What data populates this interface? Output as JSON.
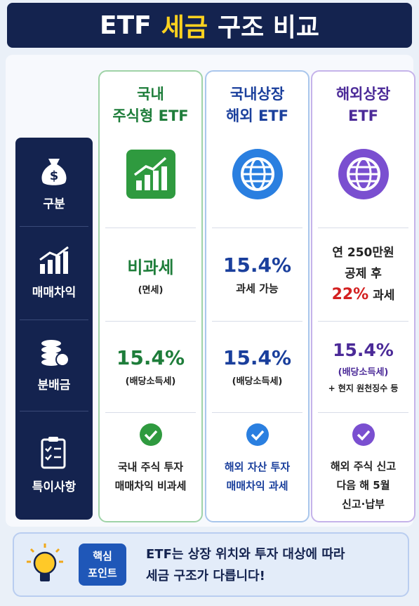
{
  "header": {
    "title": [
      "ETF",
      "세금",
      "구조 비교"
    ]
  },
  "row_labels": [
    "구분",
    "매매차익",
    "분배금",
    "특이사항"
  ],
  "columns": [
    {
      "name": [
        "국내",
        "주식형 ETF"
      ],
      "gain": [
        "비과세",
        "(면세)"
      ],
      "distribution": [
        "15.4%",
        "(배당소득세)"
      ],
      "notes": [
        "국내 주식 투자",
        "매매차익 비과세"
      ]
    },
    {
      "name": [
        "국내상장",
        "해외 ETF"
      ],
      "gain": [
        "15.4%",
        "과세 가능"
      ],
      "distribution": [
        "15.4%",
        "(배당소득세)"
      ],
      "notes": [
        "해외 자산 투자",
        "매매차익 과세"
      ]
    },
    {
      "name": [
        "해외상장",
        "ETF"
      ],
      "gain": [
        "연 250만원",
        "공제 후",
        "22%",
        "과세"
      ],
      "distribution": [
        "15.4%",
        "(배당소득세)",
        "+ 현지 원천징수 등"
      ],
      "notes": [
        "해외 주식 신고",
        "다음 해 5월",
        "신고·납부"
      ]
    }
  ],
  "footer": {
    "badge": [
      "핵심",
      "포인트"
    ],
    "message": [
      "ETF는 상장 위치와 투자 대상에 따라",
      "세금 구조가 다릅니다!"
    ]
  }
}
